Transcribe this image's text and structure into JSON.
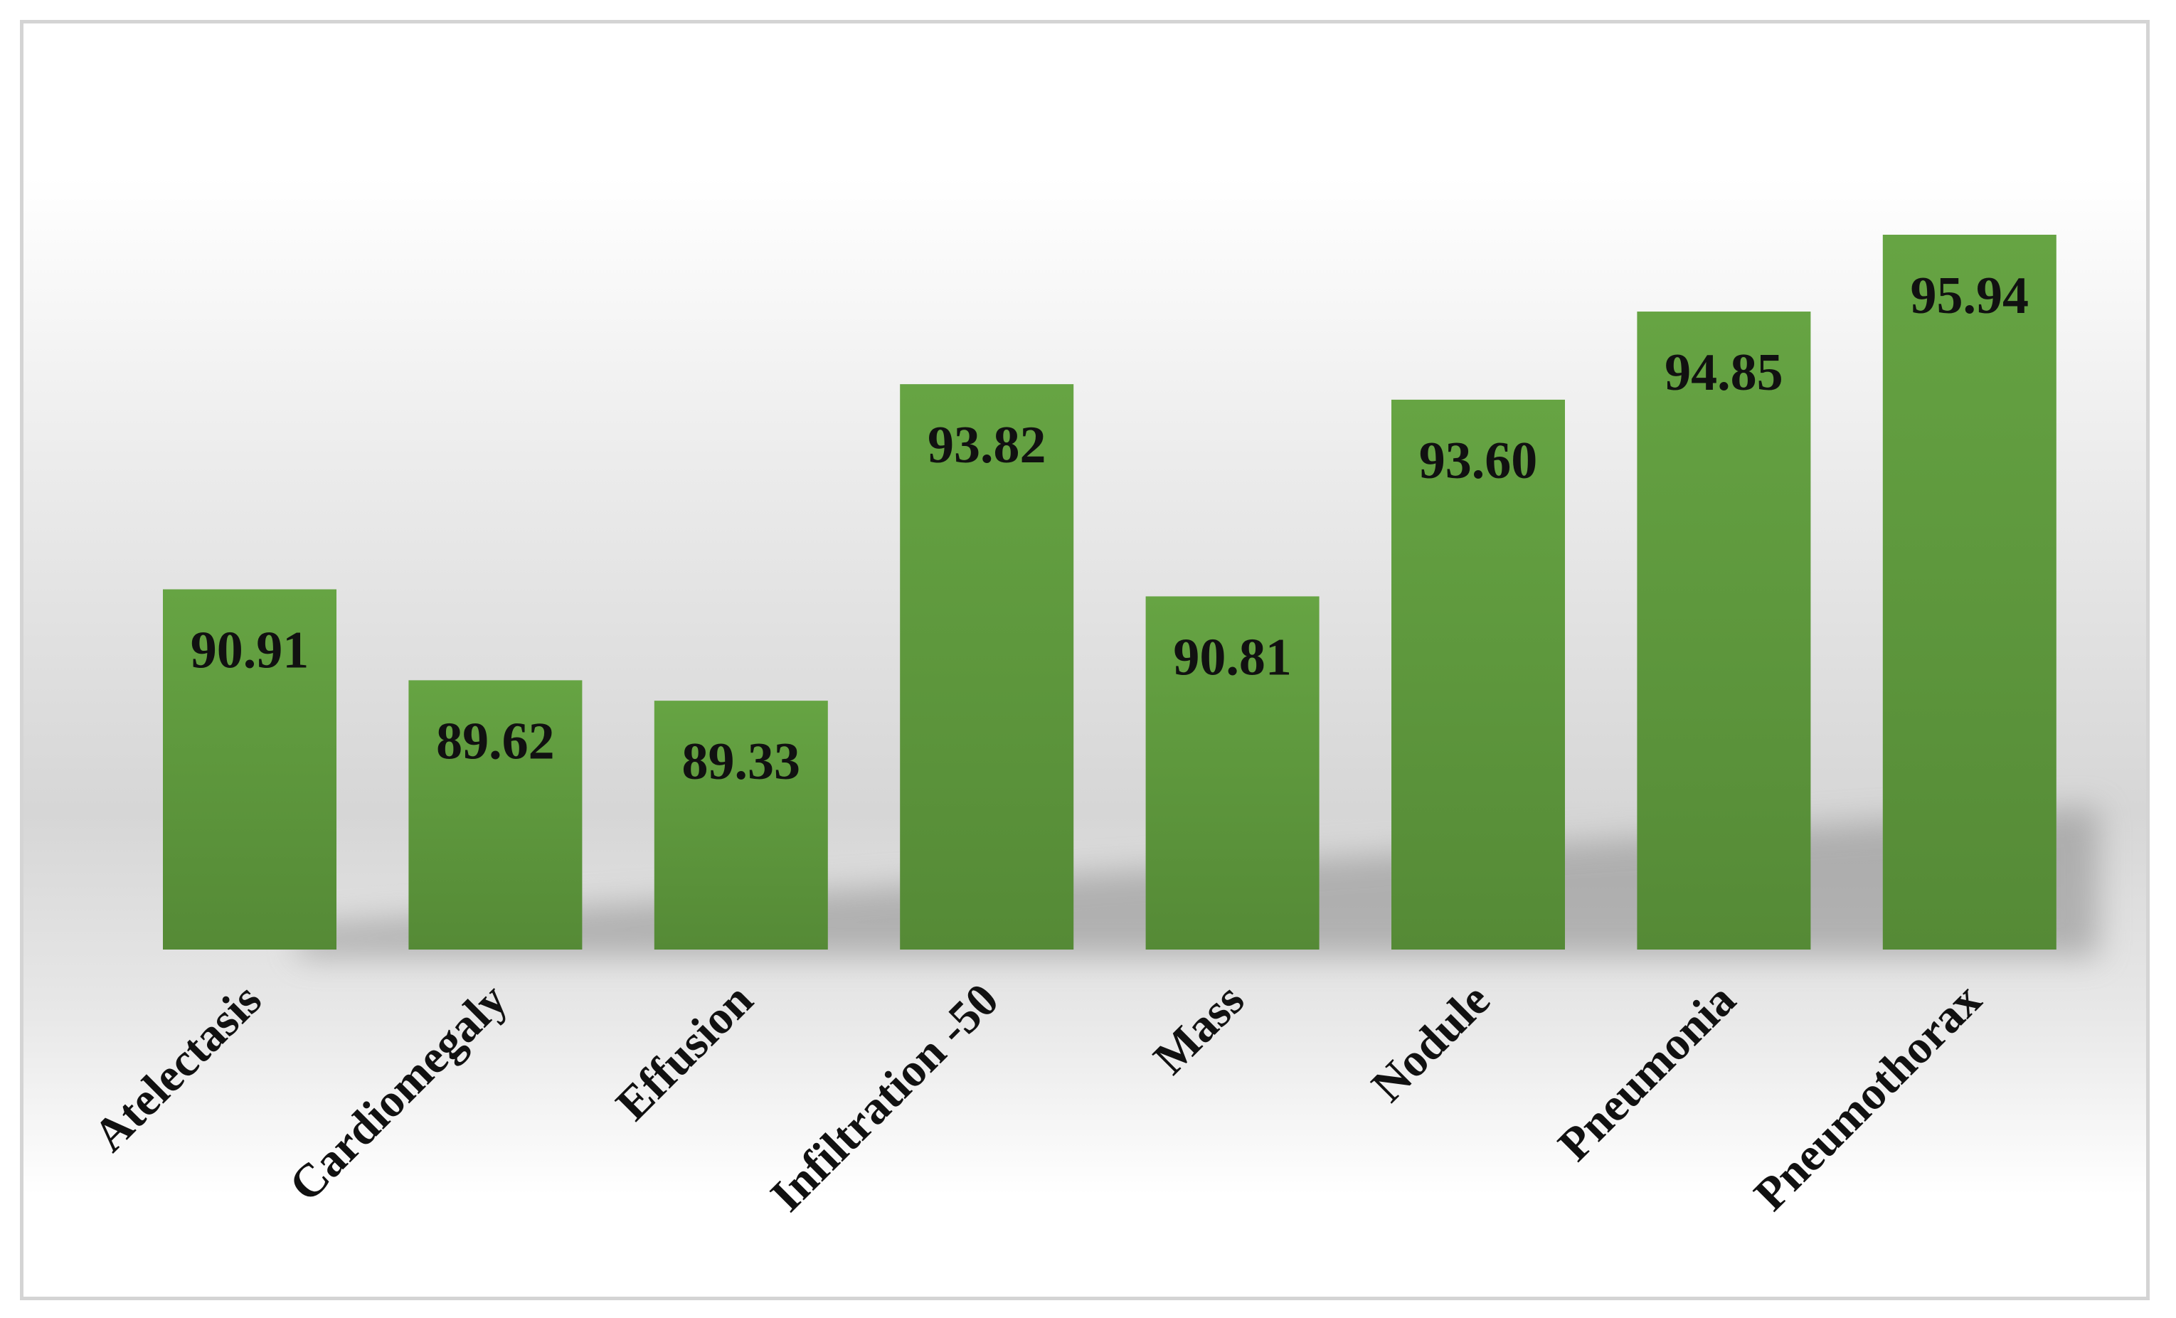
{
  "chart_data": {
    "type": "bar",
    "title": "",
    "xlabel": "",
    "ylabel": "",
    "categories": [
      "Atelectasis",
      "Cardiomegaly",
      "Effusion",
      "Infiltration -50",
      "Mass",
      "Nodule",
      "Pneumonia",
      "Pneumothorax"
    ],
    "values": [
      90.91,
      89.62,
      89.33,
      93.82,
      90.81,
      93.6,
      94.85,
      95.94
    ],
    "value_labels": [
      "90.91",
      "89.62",
      "89.33",
      "93.82",
      "90.81",
      "93.60",
      "94.85",
      "95.94"
    ],
    "ylim": [
      85.8,
      95.94
    ],
    "grid": false,
    "legend": "none",
    "bar_color": "#66a443",
    "bar_color_dark": "#558a36"
  }
}
